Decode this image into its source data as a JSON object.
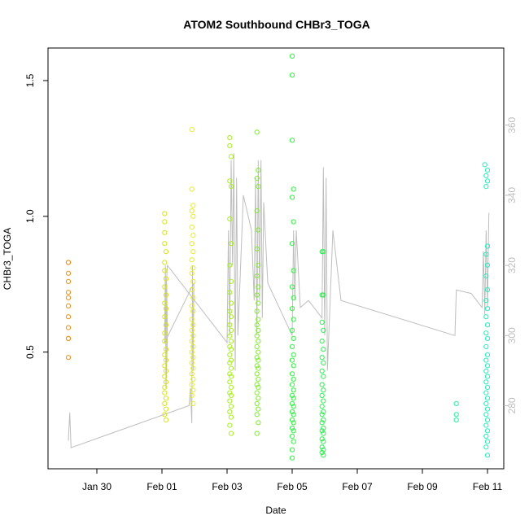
{
  "chart_data": {
    "type": "scatter",
    "title": "ATOM2 Southbound CHBr3_TOGA",
    "xlabel": "Date",
    "ylabel": "CHBr3_TOGA",
    "xlim": [
      "2017-01-28T12:00",
      "2017-02-11T12:00"
    ],
    "ylim": [
      0.07,
      1.62
    ],
    "xticks": [
      {
        "label": "Jan 30",
        "value": "2017-01-30"
      },
      {
        "label": "Feb 01",
        "value": "2017-02-01"
      },
      {
        "label": "Feb 03",
        "value": "2017-02-03"
      },
      {
        "label": "Feb 05",
        "value": "2017-02-05"
      },
      {
        "label": "Feb 07",
        "value": "2017-02-07"
      },
      {
        "label": "Feb 09",
        "value": "2017-02-09"
      },
      {
        "label": "Feb 11",
        "value": "2017-02-11"
      }
    ],
    "yticks": [
      0.5,
      1.0,
      1.5
    ],
    "y2ticks": [
      280,
      300,
      320,
      340,
      360
    ],
    "y2lim": [
      262,
      382
    ],
    "marker_colors": {
      "Jan 29": "#f08c14",
      "Feb 01": "#d8e21c",
      "Feb 02": "#e8ec20",
      "Feb 03": "#a6ef1e",
      "Feb 04": "#7af020",
      "Feb 05": "#32f242",
      "Feb 06": "#24f44a",
      "Feb 10": "#28ee9c",
      "Feb 11": "#22eebe"
    },
    "line_color": "#bebebe",
    "series": [
      {
        "color": "#f08c14",
        "x": [
          "2017-01-29T03:00",
          "2017-01-29T03:00",
          "2017-01-29T03:00",
          "2017-01-29T03:00",
          "2017-01-29T03:00",
          "2017-01-29T03:00",
          "2017-01-29T03:00",
          "2017-01-29T03:00",
          "2017-01-29T03:00",
          "2017-01-29T03:00",
          "2017-01-29T03:00",
          "2017-01-29T03:00"
        ],
        "y": [
          0.83,
          0.83,
          0.79,
          0.76,
          0.72,
          0.7,
          0.67,
          0.63,
          0.59,
          0.55,
          0.55,
          0.48
        ]
      },
      {
        "color": "#d8e21c",
        "x": [
          "2017-02-01T02:00",
          "2017-02-01T02:00",
          "2017-02-01T02:00",
          "2017-02-01T02:00",
          "2017-02-01T03:00",
          "2017-02-01T02:00",
          "2017-02-01T02:00",
          "2017-02-01T03:00",
          "2017-02-01T02:00",
          "2017-02-01T03:00",
          "2017-02-01T02:00",
          "2017-02-01T03:00",
          "2017-02-01T02:00",
          "2017-02-01T03:00",
          "2017-02-01T02:00",
          "2017-02-01T02:00",
          "2017-02-01T03:00",
          "2017-02-01T02:00",
          "2017-02-01T03:00",
          "2017-02-01T02:00",
          "2017-02-01T03:00",
          "2017-02-01T02:00",
          "2017-02-01T03:00",
          "2017-02-01T02:00",
          "2017-02-01T02:00",
          "2017-02-01T03:00",
          "2017-02-01T02:00",
          "2017-02-01T03:00",
          "2017-02-01T02:00",
          "2017-02-01T03:00"
        ],
        "y": [
          1.01,
          0.98,
          0.94,
          0.9,
          0.87,
          0.83,
          0.8,
          0.77,
          0.74,
          0.71,
          0.68,
          0.66,
          0.63,
          0.6,
          0.57,
          0.54,
          0.51,
          0.49,
          0.47,
          0.45,
          0.43,
          0.41,
          0.39,
          0.37,
          0.35,
          0.33,
          0.31,
          0.29,
          0.27,
          0.25
        ]
      },
      {
        "color": "#e8ec20",
        "x": [
          "2017-02-01T22:00",
          "2017-02-01T22:00",
          "2017-02-01T23:00",
          "2017-02-01T22:00",
          "2017-02-01T23:00",
          "2017-02-01T22:00",
          "2017-02-01T23:00",
          "2017-02-01T22:00",
          "2017-02-01T23:00",
          "2017-02-01T22:00",
          "2017-02-01T23:00",
          "2017-02-01T22:00",
          "2017-02-01T23:00",
          "2017-02-01T22:00",
          "2017-02-01T23:00",
          "2017-02-01T22:00",
          "2017-02-01T23:00",
          "2017-02-01T22:00",
          "2017-02-01T23:00",
          "2017-02-01T22:00",
          "2017-02-01T23:00",
          "2017-02-01T22:00",
          "2017-02-01T23:00",
          "2017-02-01T22:00",
          "2017-02-01T23:00",
          "2017-02-01T22:00",
          "2017-02-01T23:00",
          "2017-02-01T22:00",
          "2017-02-01T23:00",
          "2017-02-01T22:00",
          "2017-02-01T23:00",
          "2017-02-01T22:00",
          "2017-02-01T23:00"
        ],
        "y": [
          1.32,
          1.1,
          1.04,
          1.02,
          1.0,
          0.96,
          0.93,
          0.9,
          0.87,
          0.84,
          0.81,
          0.79,
          0.76,
          0.73,
          0.7,
          0.67,
          0.65,
          0.62,
          0.6,
          0.58,
          0.56,
          0.54,
          0.52,
          0.5,
          0.48,
          0.46,
          0.44,
          0.42,
          0.4,
          0.38,
          0.36,
          0.34,
          0.31
        ]
      },
      {
        "color": "#a6ef1e",
        "x": [
          "2017-02-03T02:00",
          "2017-02-03T02:00",
          "2017-02-03T03:00",
          "2017-02-03T02:00",
          "2017-02-03T03:00",
          "2017-02-03T02:00",
          "2017-02-03T03:00",
          "2017-02-03T02:00",
          "2017-02-03T03:00",
          "2017-02-03T02:00",
          "2017-02-03T03:00",
          "2017-02-03T02:00",
          "2017-02-03T03:00",
          "2017-02-03T02:00",
          "2017-02-03T03:00",
          "2017-02-03T02:00",
          "2017-02-03T03:00",
          "2017-02-03T02:00",
          "2017-02-03T03:00",
          "2017-02-03T02:00",
          "2017-02-03T03:00",
          "2017-02-03T02:00",
          "2017-02-03T03:00",
          "2017-02-03T02:00",
          "2017-02-03T03:00",
          "2017-02-03T02:00",
          "2017-02-03T03:00",
          "2017-02-03T02:00",
          "2017-02-03T03:00",
          "2017-02-03T02:00",
          "2017-02-03T03:00",
          "2017-02-03T02:00",
          "2017-02-03T03:00",
          "2017-02-03T02:00",
          "2017-02-03T03:00"
        ],
        "y": [
          1.29,
          1.26,
          1.22,
          1.13,
          1.11,
          0.99,
          0.9,
          0.82,
          0.76,
          0.72,
          0.68,
          0.65,
          0.63,
          0.6,
          0.58,
          0.56,
          0.54,
          0.52,
          0.51,
          0.49,
          0.47,
          0.46,
          0.44,
          0.42,
          0.41,
          0.39,
          0.37,
          0.35,
          0.34,
          0.32,
          0.3,
          0.28,
          0.26,
          0.23,
          0.2
        ]
      },
      {
        "color": "#7af020",
        "x": [
          "2017-02-03T22:00",
          "2017-02-03T23:00",
          "2017-02-03T22:00",
          "2017-02-03T23:00",
          "2017-02-03T22:00",
          "2017-02-03T23:00",
          "2017-02-03T22:00",
          "2017-02-03T23:00",
          "2017-02-03T22:00",
          "2017-02-03T23:00",
          "2017-02-03T22:00",
          "2017-02-03T23:00",
          "2017-02-03T22:00",
          "2017-02-03T23:00",
          "2017-02-03T22:00",
          "2017-02-03T23:00",
          "2017-02-03T22:00",
          "2017-02-03T23:00",
          "2017-02-03T22:00",
          "2017-02-03T23:00",
          "2017-02-03T22:00",
          "2017-02-03T23:00",
          "2017-02-03T22:00",
          "2017-02-03T23:00",
          "2017-02-03T22:00",
          "2017-02-03T23:00",
          "2017-02-03T22:00",
          "2017-02-03T23:00",
          "2017-02-03T22:00",
          "2017-02-03T23:00",
          "2017-02-03T22:00",
          "2017-02-03T23:00",
          "2017-02-03T22:00",
          "2017-02-03T23:00",
          "2017-02-03T22:00"
        ],
        "y": [
          1.31,
          1.17,
          1.14,
          1.11,
          1.02,
          0.95,
          0.88,
          0.82,
          0.78,
          0.74,
          0.71,
          0.68,
          0.65,
          0.62,
          0.6,
          0.58,
          0.56,
          0.54,
          0.52,
          0.5,
          0.48,
          0.47,
          0.45,
          0.44,
          0.42,
          0.4,
          0.38,
          0.37,
          0.35,
          0.33,
          0.31,
          0.29,
          0.27,
          0.24,
          0.2
        ]
      },
      {
        "color": "#32f242",
        "x": [
          "2017-02-05T00:00",
          "2017-02-05T00:00",
          "2017-02-05T00:00",
          "2017-02-05T01:00",
          "2017-02-05T00:00",
          "2017-02-05T01:00",
          "2017-02-05T00:00",
          "2017-02-05T01:00",
          "2017-02-05T00:00",
          "2017-02-05T01:00",
          "2017-02-05T00:00",
          "2017-02-05T01:00",
          "2017-02-05T00:00",
          "2017-02-05T01:00",
          "2017-02-05T00:00",
          "2017-02-05T01:00",
          "2017-02-05T00:00",
          "2017-02-05T01:00",
          "2017-02-05T00:00",
          "2017-02-05T01:00",
          "2017-02-05T00:00",
          "2017-02-05T01:00",
          "2017-02-05T00:00",
          "2017-02-05T01:00",
          "2017-02-05T00:00",
          "2017-02-05T01:00",
          "2017-02-05T00:00",
          "2017-02-05T01:00",
          "2017-02-05T00:00",
          "2017-02-05T01:00",
          "2017-02-05T00:00",
          "2017-02-05T01:00",
          "2017-02-05T00:00",
          "2017-02-05T01:00",
          "2017-02-05T00:00",
          "2017-02-05T00:00"
        ],
        "y": [
          1.59,
          1.52,
          1.28,
          1.1,
          1.07,
          0.98,
          0.9,
          0.8,
          0.74,
          0.7,
          0.66,
          0.62,
          0.58,
          0.55,
          0.52,
          0.49,
          0.47,
          0.45,
          0.42,
          0.4,
          0.38,
          0.36,
          0.34,
          0.33,
          0.31,
          0.3,
          0.28,
          0.27,
          0.25,
          0.24,
          0.22,
          0.21,
          0.19,
          0.17,
          0.14,
          0.11
        ]
      },
      {
        "color": "#24f44a",
        "x": [
          "2017-02-05T22:00",
          "2017-02-05T23:00",
          "2017-02-05T22:00",
          "2017-02-05T23:00",
          "2017-02-05T22:00",
          "2017-02-05T23:00",
          "2017-02-05T22:00",
          "2017-02-05T23:00",
          "2017-02-05T22:00",
          "2017-02-05T23:00",
          "2017-02-05T22:00",
          "2017-02-05T23:00",
          "2017-02-05T22:00",
          "2017-02-05T23:00",
          "2017-02-05T22:00",
          "2017-02-05T23:00",
          "2017-02-05T22:00",
          "2017-02-05T23:00",
          "2017-02-05T22:00",
          "2017-02-05T23:00",
          "2017-02-05T22:00",
          "2017-02-05T23:00",
          "2017-02-05T22:00",
          "2017-02-05T23:00",
          "2017-02-05T22:00",
          "2017-02-05T23:00",
          "2017-02-05T22:00",
          "2017-02-05T23:00",
          "2017-02-05T22:00",
          "2017-02-05T23:00"
        ],
        "y": [
          0.87,
          0.87,
          0.71,
          0.71,
          0.61,
          0.58,
          0.54,
          0.51,
          0.48,
          0.46,
          0.43,
          0.41,
          0.38,
          0.36,
          0.34,
          0.32,
          0.3,
          0.28,
          0.27,
          0.25,
          0.24,
          0.22,
          0.21,
          0.2,
          0.18,
          0.17,
          0.15,
          0.14,
          0.13,
          0.12
        ]
      },
      {
        "color": "#28ee9c",
        "x": [
          "2017-02-10T01:00",
          "2017-02-10T01:00",
          "2017-02-10T01:00"
        ],
        "y": [
          0.31,
          0.27,
          0.25
        ]
      },
      {
        "color": "#22eebe",
        "x": [
          "2017-02-10T22:00",
          "2017-02-11T00:00",
          "2017-02-10T23:00",
          "2017-02-11T00:00",
          "2017-02-10T23:00",
          "2017-02-11T00:00",
          "2017-02-10T23:00",
          "2017-02-11T00:00",
          "2017-02-10T23:00",
          "2017-02-11T00:00",
          "2017-02-10T23:00",
          "2017-02-11T00:00",
          "2017-02-10T23:00",
          "2017-02-11T00:00",
          "2017-02-10T23:00",
          "2017-02-11T00:00",
          "2017-02-10T23:00",
          "2017-02-11T00:00",
          "2017-02-10T23:00",
          "2017-02-11T00:00",
          "2017-02-10T23:00",
          "2017-02-11T00:00",
          "2017-02-10T23:00",
          "2017-02-11T00:00",
          "2017-02-10T23:00",
          "2017-02-11T00:00",
          "2017-02-10T23:00",
          "2017-02-11T00:00",
          "2017-02-10T23:00",
          "2017-02-11T00:00",
          "2017-02-10T23:00",
          "2017-02-11T00:00",
          "2017-02-10T23:00",
          "2017-02-11T00:00",
          "2017-02-10T23:00",
          "2017-02-11T00:00"
        ],
        "y": [
          1.19,
          1.17,
          1.15,
          1.13,
          1.11,
          0.89,
          0.86,
          0.82,
          0.78,
          0.73,
          0.69,
          0.66,
          0.63,
          0.6,
          0.57,
          0.55,
          0.52,
          0.49,
          0.47,
          0.45,
          0.43,
          0.41,
          0.39,
          0.37,
          0.35,
          0.33,
          0.31,
          0.29,
          0.27,
          0.25,
          0.23,
          0.21,
          0.19,
          0.17,
          0.15,
          0.12
        ]
      }
    ],
    "secondary_series": {
      "color": "#bebebe",
      "x": [
        "2017-01-29T03:00",
        "2017-01-29T04:00",
        "2017-01-29T05:00",
        "2017-02-01T20:00",
        "2017-02-01T21:00",
        "2017-02-01T22:00",
        "2017-02-01T22:30",
        "2017-02-01T23:00",
        "2017-02-01T23:30",
        "2017-02-01T02:00",
        "2017-02-01T02:30",
        "2017-02-01T03:00",
        "2017-02-01T04:00",
        "2017-02-01T03:30",
        "2017-02-01T03:00",
        "2017-02-01T02:30",
        "2017-02-01T04:00",
        "2017-02-03T00:00",
        "2017-02-03T01:00",
        "2017-02-03T02:00",
        "2017-02-03T03:00",
        "2017-02-03T04:00",
        "2017-02-03T05:00",
        "2017-02-03T06:00",
        "2017-02-03T07:00",
        "2017-02-03T08:00",
        "2017-02-03T12:00",
        "2017-02-03T18:00",
        "2017-02-03T20:00",
        "2017-02-03T21:00",
        "2017-02-03T22:00",
        "2017-02-03T23:00",
        "2017-02-04T00:00",
        "2017-02-04T01:00",
        "2017-02-04T02:00",
        "2017-02-04T03:00",
        "2017-02-04T06:00",
        "2017-02-05T00:00",
        "2017-02-05T01:00",
        "2017-02-05T02:00",
        "2017-02-05T03:00",
        "2017-02-05T06:00",
        "2017-02-05T12:00",
        "2017-02-05T22:00",
        "2017-02-05T23:00",
        "2017-02-06T00:00",
        "2017-02-06T01:00",
        "2017-02-06T02:00",
        "2017-02-06T06:00",
        "2017-02-06T12:00",
        "2017-02-10T00:00",
        "2017-02-10T01:00",
        "2017-02-10T12:00",
        "2017-02-10T20:00",
        "2017-02-10T21:00",
        "2017-02-10T22:00",
        "2017-02-10T23:00",
        "2017-02-11T00:00",
        "2017-02-11T01:00"
      ],
      "y": [
        270,
        278,
        268,
        280,
        285,
        275,
        320,
        290,
        315,
        298,
        320,
        285,
        300,
        315,
        290,
        310,
        320,
        298,
        330,
        300,
        350,
        320,
        352,
        290,
        345,
        300,
        340,
        330,
        310,
        345,
        300,
        350,
        310,
        350,
        305,
        338,
        315,
        300,
        330,
        310,
        330,
        308,
        310,
        305,
        348,
        300,
        345,
        290,
        330,
        310,
        300,
        313,
        312,
        308,
        324,
        306,
        330,
        308,
        335
      ]
    }
  }
}
